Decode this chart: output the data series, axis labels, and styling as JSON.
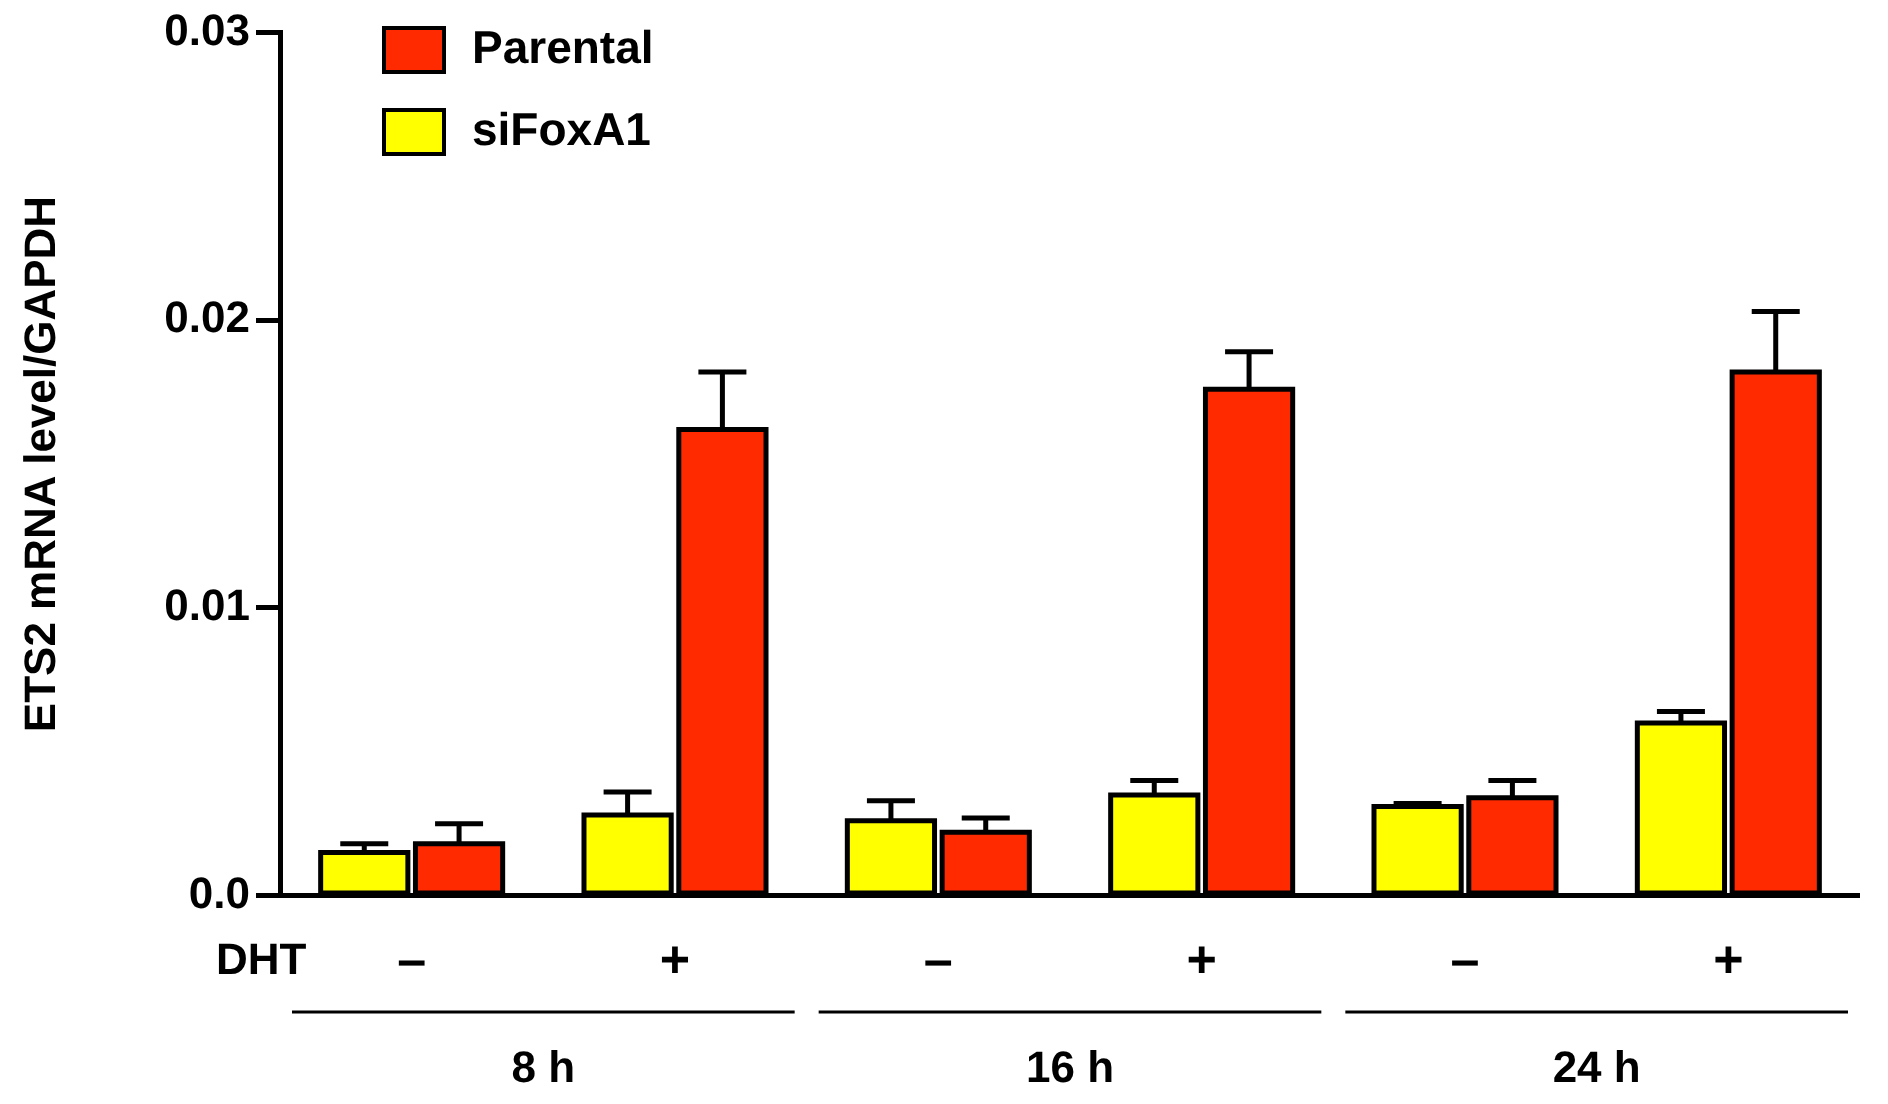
{
  "chart_data": {
    "type": "bar",
    "ylabel": "ETS2 mRNA level/GAPDH",
    "categories": [
      "–",
      "+",
      "–",
      "+",
      "–",
      "+"
    ],
    "series": [
      {
        "name": "siFoxA1",
        "color": "#ffff00",
        "values": [
          0.0015,
          0.0028,
          0.0026,
          0.0035,
          0.0031,
          0.006
        ],
        "errors": [
          [
            0.0015,
            0.0018
          ],
          [
            0.0028,
            0.0036
          ],
          [
            0.0026,
            0.0033
          ],
          [
            0.0035,
            0.004
          ],
          [
            0.0031,
            0.0032
          ],
          [
            0.006,
            0.0064
          ]
        ]
      },
      {
        "name": "Parental",
        "color": "#ff2a00",
        "values": [
          0.0018,
          0.0162,
          0.0022,
          0.0176,
          0.0034,
          0.0182
        ],
        "errors": [
          [
            0.0018,
            0.0025
          ],
          [
            0.0162,
            0.0182
          ],
          [
            0.0022,
            0.0027
          ],
          [
            0.0176,
            0.0189
          ],
          [
            0.0034,
            0.004
          ],
          [
            0.0182,
            0.0203
          ]
        ]
      }
    ],
    "ylim": [
      0,
      0.03
    ],
    "yticks": [
      {
        "value": 0,
        "label": "0.0"
      },
      0.01,
      0.02,
      0.03
    ],
    "grid": false,
    "legend": "top left",
    "annotations": [
      "DHT",
      "8 h",
      "16 h",
      "24 h"
    ]
  }
}
